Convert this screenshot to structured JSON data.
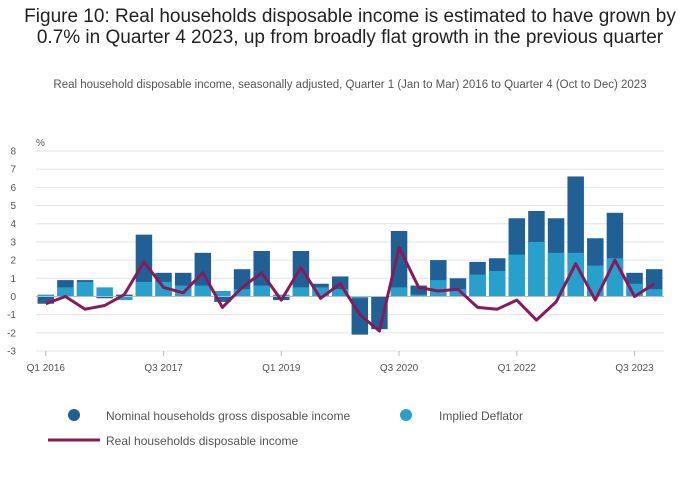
{
  "title": "Figure 10: Real households disposable income is estimated to have grown by 0.7% in Quarter 4 2023, up from broadly flat growth in the previous quarter",
  "subtitle": "Real household disposable income, seasonally adjusted, Quarter 1 (Jan to Mar) 2016 to Quarter 4 (Oct to Dec) 2023",
  "colors": {
    "nominal": "#206095",
    "deflator": "#27a0cc",
    "real": "#871a5b",
    "grid": "#e4e4e4",
    "axis": "#bbbbbb"
  },
  "chart_data": {
    "type": "bar",
    "bar_mode": "overlay",
    "y_unit_label": "%",
    "ylim": [
      -3,
      8
    ],
    "yticks": [
      -3,
      -2,
      -1,
      0,
      1,
      2,
      3,
      4,
      5,
      6,
      7,
      8
    ],
    "x_tick_labels": [
      {
        "index": 0,
        "label": "Q1 2016"
      },
      {
        "index": 6,
        "label": "Q3 2017"
      },
      {
        "index": 12,
        "label": "Q1 2019"
      },
      {
        "index": 18,
        "label": "Q3 2020"
      },
      {
        "index": 24,
        "label": "Q1 2022"
      },
      {
        "index": 30,
        "label": "Q3 2023"
      }
    ],
    "categories": [
      "Q1 2016",
      "Q2 2016",
      "Q3 2016",
      "Q4 2016",
      "Q1 2017",
      "Q2 2017",
      "Q3 2017",
      "Q4 2017",
      "Q1 2018",
      "Q2 2018",
      "Q3 2018",
      "Q4 2018",
      "Q1 2019",
      "Q2 2019",
      "Q3 2019",
      "Q4 2019",
      "Q1 2020",
      "Q2 2020",
      "Q3 2020",
      "Q4 2020",
      "Q1 2021",
      "Q2 2021",
      "Q3 2021",
      "Q4 2021",
      "Q1 2022",
      "Q2 2022",
      "Q3 2022",
      "Q4 2022",
      "Q1 2023",
      "Q2 2023",
      "Q3 2023",
      "Q4 2023"
    ],
    "series": [
      {
        "name": "Nominal households gross disposable income",
        "kind": "bar",
        "values": [
          -0.4,
          0.9,
          0.9,
          -0.1,
          0.1,
          3.4,
          1.3,
          1.3,
          2.4,
          -0.3,
          1.5,
          2.5,
          -0.2,
          2.5,
          0.7,
          1.1,
          -2.1,
          -1.8,
          3.6,
          0.6,
          2.0,
          1.0,
          1.9,
          2.1,
          4.3,
          4.7,
          4.3,
          6.6,
          3.2,
          4.6,
          1.3,
          1.5
        ]
      },
      {
        "name": "Implied Deflator",
        "kind": "bar",
        "values": [
          0.1,
          0.5,
          0.8,
          0.5,
          -0.2,
          0.8,
          0.8,
          0.6,
          0.6,
          0.3,
          0.4,
          0.6,
          0.1,
          0.5,
          0.5,
          0.4,
          -0.1,
          0.0,
          0.5,
          0.1,
          0.9,
          0.4,
          1.2,
          1.4,
          2.3,
          3.0,
          2.4,
          2.4,
          1.7,
          2.1,
          0.7,
          0.4
        ]
      },
      {
        "name": "Real households disposable income",
        "kind": "line",
        "values": [
          -0.4,
          0.0,
          -0.7,
          -0.5,
          0.1,
          1.9,
          0.5,
          0.2,
          1.3,
          -0.6,
          0.5,
          1.3,
          -0.2,
          1.6,
          -0.1,
          0.7,
          -1.0,
          -1.9,
          2.7,
          0.5,
          0.3,
          0.4,
          -0.6,
          -0.7,
          -0.2,
          -1.3,
          -0.3,
          1.8,
          -0.2,
          2.0,
          0.0,
          0.7
        ]
      }
    ],
    "legend": [
      "Nominal households gross disposable income",
      "Implied Deflator",
      "Real households disposable income"
    ],
    "legend_position": "bottom",
    "grid": true
  }
}
